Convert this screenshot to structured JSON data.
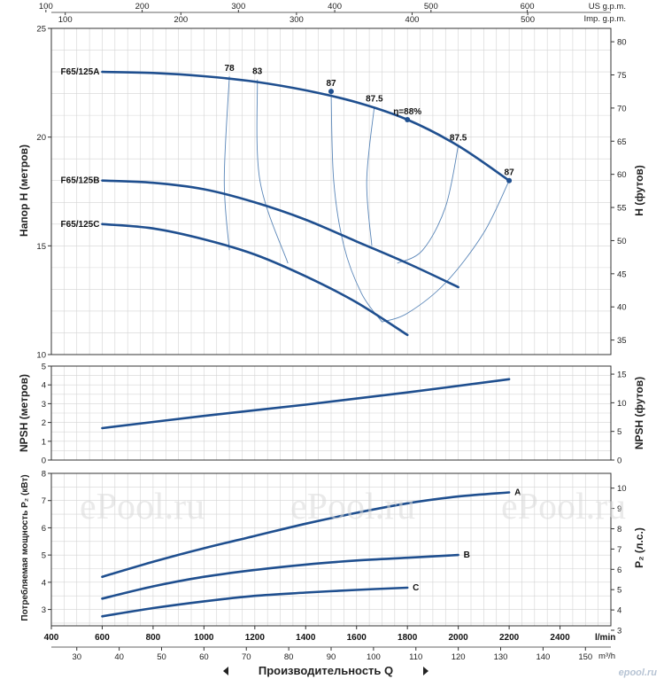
{
  "chart_data": {
    "type": "line",
    "xlabel": "Производительность Q",
    "x_unit_primary": "l/min",
    "x_unit_secondary": "m³/h",
    "xlim": [
      400,
      2600
    ],
    "x_ticks": [
      400,
      600,
      800,
      1000,
      1200,
      1400,
      1600,
      1800,
      2000,
      2200,
      2400
    ],
    "x_ticks_m3h": [
      30,
      40,
      50,
      60,
      70,
      80,
      90,
      100,
      110,
      120,
      130,
      140,
      150
    ],
    "top_axes": [
      {
        "label": "US g.p.m.",
        "ticks": [
          100,
          200,
          300,
          400,
          500,
          600
        ]
      },
      {
        "label": "Imp. g.p.m.",
        "ticks": [
          100,
          200,
          300,
          400,
          500
        ]
      }
    ],
    "panels": {
      "head": {
        "ylabel": "Напор H  (метров)",
        "ylabel_right": "H  (футов)",
        "ylim": [
          10,
          25
        ],
        "y_ticks": [
          10,
          15,
          20,
          25
        ],
        "y_right_ticks": [
          35,
          40,
          45,
          50,
          55,
          60,
          65,
          70,
          75,
          80
        ],
        "series": [
          {
            "name": "F65/125A",
            "x": [
              600,
              800,
              1000,
              1200,
              1400,
              1600,
              1800,
              2000,
              2200
            ],
            "y": [
              23.0,
              22.95,
              22.8,
              22.55,
              22.15,
              21.6,
              20.8,
              19.6,
              18.0
            ]
          },
          {
            "name": "F65/125B",
            "x": [
              600,
              800,
              1000,
              1200,
              1400,
              1600,
              1800,
              2000
            ],
            "y": [
              18.0,
              17.9,
              17.6,
              17.0,
              16.2,
              15.2,
              14.2,
              13.1
            ]
          },
          {
            "name": "F65/125C",
            "x": [
              600,
              800,
              1000,
              1200,
              1400,
              1600,
              1800
            ],
            "y": [
              16.0,
              15.8,
              15.3,
              14.6,
              13.6,
              12.4,
              10.9
            ]
          }
        ],
        "efficiency_labels": [
          {
            "text": "78",
            "x": 1100,
            "y": 22.8
          },
          {
            "text": "83",
            "x": 1210,
            "y": 22.65
          },
          {
            "text": "87",
            "x": 1500,
            "y": 22.1
          },
          {
            "text": "87.5",
            "x": 1670,
            "y": 21.4
          },
          {
            "text": "η=88%",
            "x": 1800,
            "y": 20.8
          },
          {
            "text": "87.5",
            "x": 2000,
            "y": 19.6
          },
          {
            "text": "87",
            "x": 2200,
            "y": 18.0
          }
        ],
        "iso_efficiency_curves": [
          {
            "x": [
              1100,
              1080,
              1100
            ],
            "y": [
              22.8,
              18.0,
              14.8
            ]
          },
          {
            "x": [
              1210,
              1220,
              1330
            ],
            "y": [
              22.65,
              18.0,
              14.2
            ]
          },
          {
            "x": [
              1500,
              1510,
              1550,
              1620,
              1700
            ],
            "y": [
              22.1,
              18.0,
              15.0,
              12.8,
              11.5
            ]
          },
          {
            "x": [
              1670,
              1640,
              1660
            ],
            "y": [
              21.4,
              18.0,
              15.0
            ]
          },
          {
            "x": [
              2000,
              1950,
              1860,
              1760
            ],
            "y": [
              19.6,
              16.8,
              14.8,
              14.2
            ]
          },
          {
            "x": [
              2200,
              2100,
              1950,
              1800,
              1700
            ],
            "y": [
              18.0,
              15.6,
              13.3,
              11.9,
              11.5
            ]
          }
        ]
      },
      "npsh": {
        "ylabel": "NPSH  (метров)",
        "ylabel_right": "NPSH  (футов)",
        "ylim": [
          0,
          5
        ],
        "y_ticks": [
          0,
          1,
          2,
          3,
          4,
          5
        ],
        "y_right_ticks": [
          0,
          5,
          10,
          15
        ],
        "series": [
          {
            "x": [
              600,
              1000,
              1400,
              1800,
              2200
            ],
            "y": [
              1.7,
              2.35,
              2.95,
              3.6,
              4.3
            ]
          }
        ]
      },
      "power": {
        "ylabel": "Потребляемая мощность P₂ (кВт)",
        "ylabel_right": "P₂  (л.с.)",
        "ylim": [
          2.4,
          8
        ],
        "y_ticks": [
          3,
          4,
          5,
          6,
          7,
          8
        ],
        "y_right_ticks": [
          3,
          4,
          5,
          6,
          7,
          8,
          9,
          10
        ],
        "series": [
          {
            "name": "A",
            "x": [
              600,
              800,
              1000,
              1200,
              1400,
              1600,
              1800,
              2000,
              2200
            ],
            "y": [
              4.2,
              4.75,
              5.25,
              5.7,
              6.15,
              6.55,
              6.9,
              7.15,
              7.3
            ]
          },
          {
            "name": "B",
            "x": [
              600,
              800,
              1000,
              1200,
              1400,
              1600,
              1800,
              2000
            ],
            "y": [
              3.4,
              3.85,
              4.2,
              4.45,
              4.65,
              4.8,
              4.9,
              5.0
            ]
          },
          {
            "name": "C",
            "x": [
              600,
              800,
              1000,
              1200,
              1400,
              1600,
              1800
            ],
            "y": [
              2.75,
              3.05,
              3.3,
              3.5,
              3.62,
              3.72,
              3.8
            ]
          }
        ]
      }
    }
  },
  "watermark": "ePool.ru",
  "corner_logo": "epool.ru",
  "colors": {
    "curve": "#1f4f8f",
    "iso": "#5a86b8",
    "grid": "#d4d4d4"
  }
}
